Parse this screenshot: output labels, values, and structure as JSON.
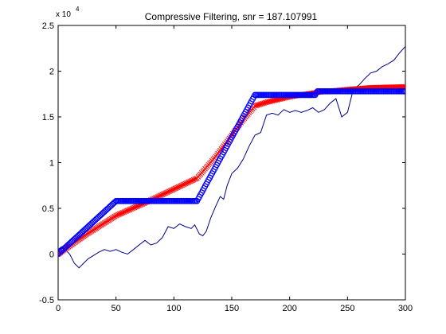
{
  "chart_data": {
    "type": "line",
    "title": "Compressive Filtering, snr = 187.107991",
    "xlabel": "",
    "ylabel": "",
    "xlim": [
      0,
      300
    ],
    "ylim": [
      -0.5,
      2.5
    ],
    "y_scale_label": "x 10",
    "y_scale_exponent": "4",
    "x_ticks": [
      0,
      50,
      100,
      150,
      200,
      250,
      300
    ],
    "x_tick_labels": [
      "0",
      "50",
      "100",
      "150",
      "200",
      "250",
      "300"
    ],
    "y_ticks": [
      -0.5,
      0,
      0.5,
      1,
      1.5,
      2,
      2.5
    ],
    "y_tick_labels": [
      "-0.5",
      "0",
      "0.5",
      "1",
      "1.5",
      "2",
      "2.5"
    ],
    "grid": false,
    "legend": "none",
    "series": [
      {
        "marker": "o",
        "color": "#0000ff",
        "x": [
          0,
          50,
          120,
          170,
          222,
          224,
          300
        ],
        "y": [
          0,
          0.58,
          0.58,
          1.74,
          1.74,
          1.78,
          1.78
        ]
      },
      {
        "marker": "x",
        "color": "#ff0000",
        "x": [
          0,
          25,
          50,
          75,
          100,
          120,
          135,
          150,
          160,
          170,
          180,
          200,
          225,
          250,
          270,
          300
        ],
        "y": [
          0,
          0.22,
          0.42,
          0.56,
          0.71,
          0.83,
          1.05,
          1.3,
          1.47,
          1.62,
          1.66,
          1.72,
          1.77,
          1.8,
          1.82,
          1.83
        ]
      },
      {
        "marker": "",
        "color": "#00008b",
        "x": [
          0,
          3,
          6,
          10,
          14,
          18,
          22,
          26,
          30,
          35,
          40,
          45,
          50,
          55,
          60,
          65,
          70,
          75,
          80,
          85,
          90,
          95,
          100,
          105,
          110,
          115,
          118,
          122,
          125,
          128,
          132,
          136,
          140,
          143,
          146,
          150,
          155,
          160,
          165,
          170,
          175,
          180,
          185,
          190,
          195,
          200,
          205,
          210,
          215,
          220,
          225,
          230,
          235,
          240,
          245,
          250,
          255,
          260,
          265,
          270,
          275,
          280,
          285,
          290,
          295,
          300
        ],
        "y": [
          0.05,
          0.08,
          0.05,
          0.0,
          -0.1,
          -0.15,
          -0.1,
          -0.05,
          -0.02,
          0.02,
          0.05,
          0.03,
          0.05,
          0.02,
          0.0,
          0.05,
          0.1,
          0.15,
          0.1,
          0.12,
          0.18,
          0.3,
          0.28,
          0.33,
          0.3,
          0.28,
          0.32,
          0.22,
          0.2,
          0.25,
          0.4,
          0.52,
          0.63,
          0.6,
          0.75,
          0.88,
          0.94,
          1.04,
          1.18,
          1.3,
          1.33,
          1.52,
          1.54,
          1.52,
          1.58,
          1.55,
          1.57,
          1.55,
          1.57,
          1.6,
          1.55,
          1.58,
          1.65,
          1.7,
          1.5,
          1.55,
          1.8,
          1.85,
          1.92,
          1.98,
          2.0,
          2.05,
          2.08,
          2.12,
          2.2,
          2.27
        ]
      }
    ]
  }
}
